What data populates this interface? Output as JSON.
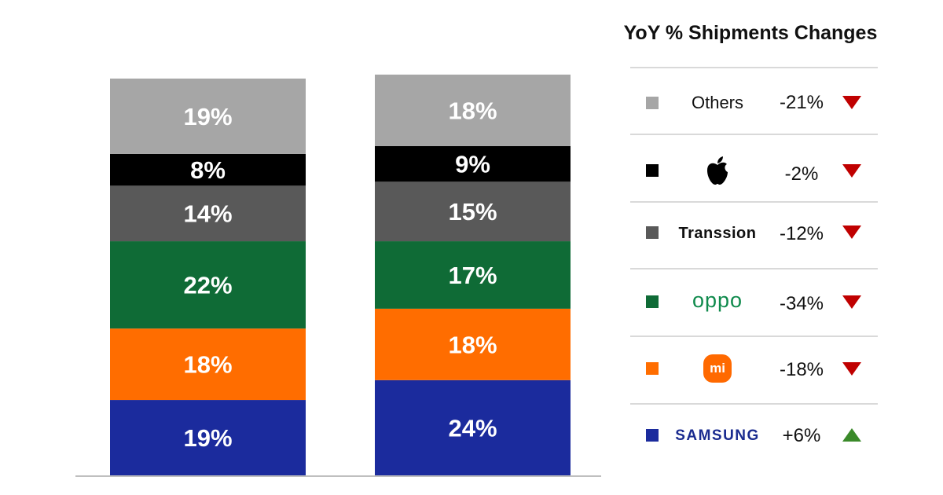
{
  "chart_data": {
    "type": "bar",
    "stacked": true,
    "categories": [
      "",
      ""
    ],
    "ylim": [
      0,
      100
    ],
    "series": [
      {
        "name": "Samsung",
        "color": "#1b2b9d",
        "values": [
          19,
          24
        ]
      },
      {
        "name": "Xiaomi",
        "color": "#ff6d00",
        "values": [
          18,
          18
        ]
      },
      {
        "name": "OPPO",
        "color": "#0f6b36",
        "values": [
          22,
          17
        ]
      },
      {
        "name": "Transsion",
        "color": "#595959",
        "values": [
          14,
          15
        ]
      },
      {
        "name": "Apple",
        "color": "#000000",
        "values": [
          8,
          9
        ]
      },
      {
        "name": "Others",
        "color": "#a6a6a6",
        "values": [
          19,
          18
        ]
      }
    ],
    "data_labels": [
      [
        "19%",
        "18%",
        "22%",
        "14%",
        "8%",
        "19%"
      ],
      [
        "24%",
        "18%",
        "17%",
        "15%",
        "9%",
        "18%"
      ]
    ]
  },
  "legend": {
    "title": "YoY % Shipments Changes",
    "items": [
      {
        "brand": "Others",
        "color": "#a6a6a6",
        "yoy": "-21%",
        "trend": "down",
        "icon": "text"
      },
      {
        "brand": "",
        "color": "#000000",
        "yoy": "-2%",
        "trend": "down",
        "icon": "apple-logo-icon"
      },
      {
        "brand": "Transsion",
        "color": "#595959",
        "yoy": "-12%",
        "trend": "down",
        "icon": "text"
      },
      {
        "brand": "oppo",
        "color": "#0f6b36",
        "yoy": "-34%",
        "trend": "down",
        "icon": "oppo-logo"
      },
      {
        "brand": "mi",
        "color": "#ff6d00",
        "yoy": "-18%",
        "trend": "down",
        "icon": "xiaomi-logo"
      },
      {
        "brand": "SAMSUNG",
        "color": "#1b2b9d",
        "yoy": "+6%",
        "trend": "up",
        "icon": "samsung-logo"
      }
    ]
  },
  "colors": {
    "down_arrow": "#c00000",
    "up_arrow": "#3a8a2a",
    "baseline": "#bfbfbf"
  }
}
